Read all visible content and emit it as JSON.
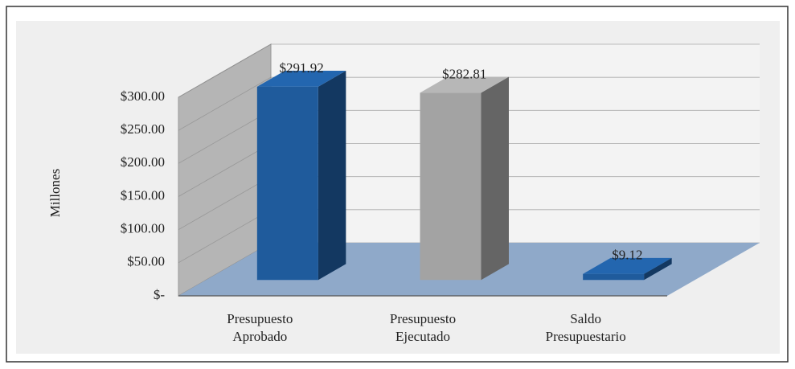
{
  "chart_data": {
    "type": "bar3d",
    "categories": [
      [
        "Presupuesto",
        "Aprobado"
      ],
      [
        "Presupuesto",
        "Ejecutado"
      ],
      [
        "Saldo",
        "Presupuestario"
      ]
    ],
    "values": [
      291.92,
      282.81,
      9.12
    ],
    "value_labels": [
      "$291.92",
      "$282.81",
      "$9.12"
    ],
    "colors": [
      "#1f5b9c",
      "#a3a3a3",
      "#1f5b9c"
    ],
    "y_label": "Millones",
    "ylim": [
      0,
      300
    ],
    "yticks": [
      {
        "value": 0,
        "label": "$-"
      },
      {
        "value": 50,
        "label": "$50.00"
      },
      {
        "value": 100,
        "label": "$100.00"
      },
      {
        "value": 150,
        "label": "$150.00"
      },
      {
        "value": 200,
        "label": "$200.00"
      },
      {
        "value": 250,
        "label": "$250.00"
      },
      {
        "value": 300,
        "label": "$300.00"
      }
    ],
    "grid": true
  }
}
